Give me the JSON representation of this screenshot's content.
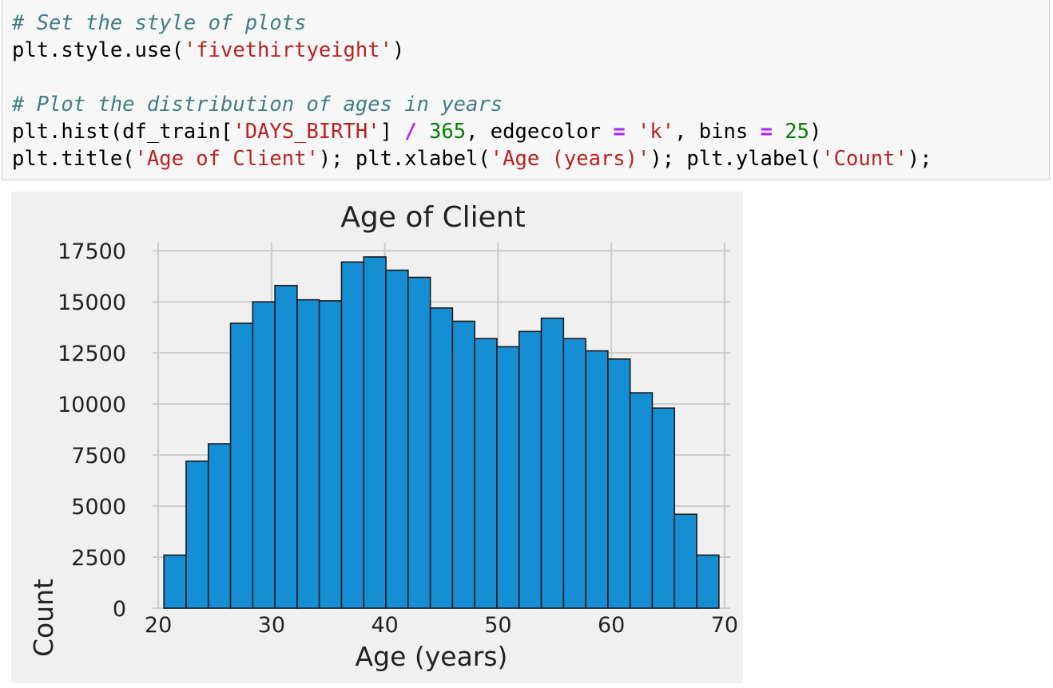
{
  "code_cell": {
    "lines": [
      [
        {
          "type": "comment",
          "text": "# Set the style of plots"
        }
      ],
      [
        {
          "type": "plain",
          "text": "plt.style.use("
        },
        {
          "type": "string",
          "text": "'fivethirtyeight'"
        },
        {
          "type": "plain",
          "text": ")"
        }
      ],
      [],
      [
        {
          "type": "comment",
          "text": "# Plot the distribution of ages in years"
        }
      ],
      [
        {
          "type": "plain",
          "text": "plt.hist(df_train["
        },
        {
          "type": "string",
          "text": "'DAYS_BIRTH'"
        },
        {
          "type": "plain",
          "text": "] "
        },
        {
          "type": "op",
          "text": "/"
        },
        {
          "type": "plain",
          "text": " "
        },
        {
          "type": "number",
          "text": "365"
        },
        {
          "type": "plain",
          "text": ", edgecolor "
        },
        {
          "type": "op",
          "text": "="
        },
        {
          "type": "plain",
          "text": " "
        },
        {
          "type": "string",
          "text": "'k'"
        },
        {
          "type": "plain",
          "text": ", bins "
        },
        {
          "type": "op",
          "text": "="
        },
        {
          "type": "plain",
          "text": " "
        },
        {
          "type": "number",
          "text": "25"
        },
        {
          "type": "plain",
          "text": ")"
        }
      ],
      [
        {
          "type": "plain",
          "text": "plt.title("
        },
        {
          "type": "string",
          "text": "'Age of Client'"
        },
        {
          "type": "plain",
          "text": "); plt.xlabel("
        },
        {
          "type": "string",
          "text": "'Age (years)'"
        },
        {
          "type": "plain",
          "text": "); plt.ylabel("
        },
        {
          "type": "string",
          "text": "'Count'"
        },
        {
          "type": "plain",
          "text": ");"
        }
      ]
    ]
  },
  "colors": {
    "bar_fill": "#168ed4",
    "bar_edge": "#1a1a1a",
    "plot_background": "#f0f0f0",
    "grid": "#cbcbcb",
    "text": "#222222"
  },
  "chart_data": {
    "type": "bar",
    "title": "Age of Client",
    "xlabel": "Age (years)",
    "ylabel": "Count",
    "bin_edges": [
      20.5,
      22.46,
      24.42,
      26.38,
      28.34,
      30.3,
      32.26,
      34.22,
      36.18,
      38.14,
      40.1,
      42.06,
      44.02,
      45.98,
      47.94,
      49.9,
      51.86,
      53.82,
      55.78,
      57.74,
      59.7,
      61.66,
      63.62,
      65.58,
      67.54,
      69.5
    ],
    "values": [
      2600,
      7200,
      8050,
      13950,
      15000,
      15800,
      15100,
      15050,
      16950,
      17200,
      16550,
      16200,
      14700,
      14050,
      13200,
      12800,
      13550,
      14200,
      13200,
      12600,
      12200,
      10550,
      9800,
      4600,
      2600
    ],
    "xlim": [
      19.5,
      70.5
    ],
    "ylim": [
      0,
      17900
    ],
    "xticks": [
      20,
      30,
      40,
      50,
      60,
      70
    ],
    "yticks": [
      0,
      2500,
      5000,
      7500,
      10000,
      12500,
      15000,
      17500
    ],
    "grid": true
  }
}
